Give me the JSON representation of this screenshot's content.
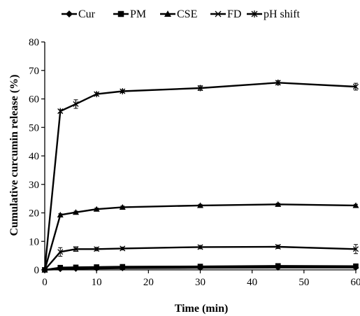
{
  "chart_data": {
    "type": "line",
    "title": "",
    "xlabel": "Time (min)",
    "ylabel": "Cumulative curcumin release (%)",
    "xlim": [
      0,
      60
    ],
    "ylim": [
      0,
      80
    ],
    "x_ticks": [
      0,
      10,
      20,
      30,
      40,
      50,
      60
    ],
    "y_ticks": [
      0,
      10,
      20,
      30,
      40,
      50,
      60,
      70,
      80
    ],
    "grid": false,
    "legend_position": "top",
    "x": [
      0,
      3,
      6,
      10,
      15,
      30,
      45,
      60
    ],
    "series": [
      {
        "name": "Cur",
        "marker": "diamond",
        "color": "#000000",
        "values": [
          0,
          0.3,
          0.4,
          0.5,
          0.6,
          0.7,
          0.8,
          0.8
        ],
        "error": [
          0,
          0.1,
          0.1,
          0.1,
          0.1,
          0.1,
          0.1,
          0.1
        ]
      },
      {
        "name": "PM",
        "marker": "square",
        "color": "#000000",
        "values": [
          0,
          0.8,
          0.9,
          1.0,
          1.1,
          1.2,
          1.4,
          1.3
        ],
        "error": [
          0,
          0.2,
          0.2,
          0.2,
          0.2,
          0.2,
          0.2,
          0.2
        ]
      },
      {
        "name": "CSE",
        "marker": "triangle",
        "color": "#000000",
        "values": [
          0,
          19.3,
          20.2,
          21.3,
          22.0,
          22.6,
          23.0,
          22.6
        ],
        "error": [
          0,
          0.4,
          0.4,
          0.4,
          0.4,
          0.4,
          0.4,
          0.4
        ]
      },
      {
        "name": "FD",
        "marker": "x",
        "color": "#000000",
        "values": [
          0,
          6.3,
          7.3,
          7.3,
          7.5,
          8.0,
          8.1,
          7.3
        ],
        "error": [
          0,
          1.5,
          0.8,
          0.6,
          0.5,
          0.6,
          0.6,
          1.6
        ]
      },
      {
        "name": "pH shift",
        "marker": "asterisk",
        "color": "#000000",
        "values": [
          0,
          55.7,
          58.2,
          61.7,
          62.7,
          63.8,
          65.7,
          64.3
        ],
        "error": [
          0,
          0.5,
          1.5,
          0.5,
          0.5,
          0.8,
          0.7,
          1.2
        ]
      }
    ]
  }
}
